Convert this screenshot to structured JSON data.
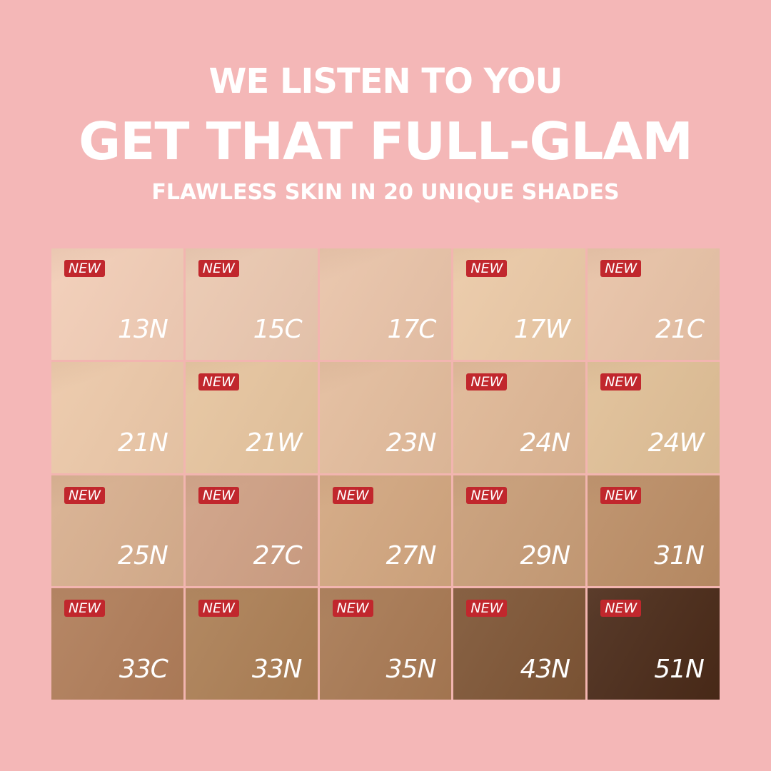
{
  "header": {
    "line1": "WE LISTEN TO YOU",
    "line2": "GET THAT FULL-GLAM",
    "line3": "FLAWLESS SKIN IN 20 UNIQUE SHADES"
  },
  "badge_label": "NEW",
  "colors": {
    "background": "#f4b7b7",
    "badge": "#c1272d"
  },
  "shades": [
    {
      "name": "13N",
      "new": true,
      "color": "#f2cdb6"
    },
    {
      "name": "15C",
      "new": true,
      "color": "#ebc8b0"
    },
    {
      "name": "17C",
      "new": false,
      "color": "#e9c3a8"
    },
    {
      "name": "17W",
      "new": true,
      "color": "#ebc9a6"
    },
    {
      "name": "21C",
      "new": true,
      "color": "#e8c2a6"
    },
    {
      "name": "21N",
      "new": false,
      "color": "#ecc8a8"
    },
    {
      "name": "21W",
      "new": true,
      "color": "#e6c49e"
    },
    {
      "name": "23N",
      "new": false,
      "color": "#e3bc9c"
    },
    {
      "name": "24N",
      "new": true,
      "color": "#dfb795"
    },
    {
      "name": "24W",
      "new": true,
      "color": "#e0bf96"
    },
    {
      "name": "25N",
      "new": true,
      "color": "#d8af8e"
    },
    {
      "name": "27C",
      "new": true,
      "color": "#cfa084"
    },
    {
      "name": "27N",
      "new": true,
      "color": "#d2a67f"
    },
    {
      "name": "29N",
      "new": true,
      "color": "#c89d77"
    },
    {
      "name": "31N",
      "new": true,
      "color": "#bb8d65"
    },
    {
      "name": "33C",
      "new": true,
      "color": "#b07d59"
    },
    {
      "name": "33N",
      "new": true,
      "color": "#ac7f55"
    },
    {
      "name": "35N",
      "new": true,
      "color": "#a87953"
    },
    {
      "name": "43N",
      "new": true,
      "color": "#7e5535"
    },
    {
      "name": "51N",
      "new": true,
      "color": "#4a2a18"
    }
  ]
}
